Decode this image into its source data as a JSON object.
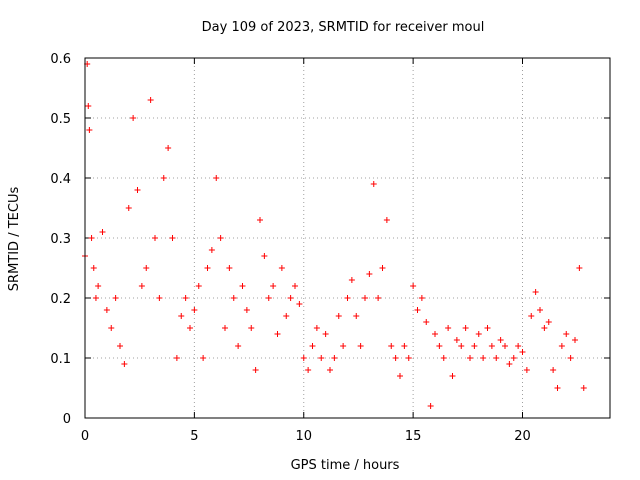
{
  "chart_data": {
    "type": "scatter",
    "title": "Day 109 of 2023, SRMTID for receiver moul",
    "xlabel": "GPS time / hours",
    "ylabel": "SRMTID / TECUs",
    "xlim": [
      0,
      24
    ],
    "ylim": [
      0,
      0.6
    ],
    "xticks": [
      0,
      5,
      10,
      15,
      20
    ],
    "xtick_labels": [
      "0",
      "5",
      "10",
      "15",
      "20"
    ],
    "yticks": [
      0,
      0.1,
      0.2,
      0.3,
      0.4,
      0.5,
      0.6
    ],
    "ytick_labels": [
      "0",
      "0.1",
      "0.2",
      "0.3",
      "0.4",
      "0.5",
      "0.6"
    ],
    "grid": true,
    "marker": "+",
    "series": [
      {
        "name": "SRMTID",
        "color": "#ff0000",
        "x": [
          0.0,
          0.1,
          0.15,
          0.2,
          0.3,
          0.4,
          0.5,
          0.6,
          0.8,
          1.0,
          1.2,
          1.4,
          1.6,
          1.8,
          2.0,
          2.2,
          2.4,
          2.6,
          2.8,
          3.0,
          3.2,
          3.4,
          3.6,
          3.8,
          4.0,
          4.2,
          4.4,
          4.6,
          4.8,
          5.0,
          5.2,
          5.4,
          5.6,
          5.8,
          6.0,
          6.2,
          6.4,
          6.6,
          6.8,
          7.0,
          7.2,
          7.4,
          7.6,
          7.8,
          8.0,
          8.2,
          8.4,
          8.6,
          8.8,
          9.0,
          9.2,
          9.4,
          9.6,
          9.8,
          10.0,
          10.2,
          10.4,
          10.6,
          10.8,
          11.0,
          11.2,
          11.4,
          11.6,
          11.8,
          12.0,
          12.2,
          12.4,
          12.6,
          12.8,
          13.0,
          13.2,
          13.4,
          13.6,
          13.8,
          14.0,
          14.2,
          14.4,
          14.6,
          14.8,
          15.0,
          15.2,
          15.4,
          15.6,
          15.8,
          16.0,
          16.2,
          16.4,
          16.6,
          16.8,
          17.0,
          17.2,
          17.4,
          17.6,
          17.8,
          18.0,
          18.2,
          18.4,
          18.6,
          18.8,
          19.0,
          19.2,
          19.4,
          19.6,
          19.8,
          20.0,
          20.2,
          20.4,
          20.6,
          20.8,
          21.0,
          21.2,
          21.4,
          21.6,
          21.8,
          22.0,
          22.2,
          22.4,
          22.6,
          22.8
        ],
        "y": [
          0.27,
          0.59,
          0.52,
          0.48,
          0.3,
          0.25,
          0.2,
          0.22,
          0.31,
          0.18,
          0.15,
          0.2,
          0.12,
          0.09,
          0.35,
          0.5,
          0.38,
          0.22,
          0.25,
          0.53,
          0.3,
          0.2,
          0.4,
          0.45,
          0.3,
          0.1,
          0.17,
          0.2,
          0.15,
          0.18,
          0.22,
          0.1,
          0.25,
          0.28,
          0.4,
          0.3,
          0.15,
          0.25,
          0.2,
          0.12,
          0.22,
          0.18,
          0.15,
          0.08,
          0.33,
          0.27,
          0.2,
          0.22,
          0.14,
          0.25,
          0.17,
          0.2,
          0.22,
          0.19,
          0.1,
          0.08,
          0.12,
          0.15,
          0.1,
          0.14,
          0.08,
          0.1,
          0.17,
          0.12,
          0.2,
          0.23,
          0.17,
          0.12,
          0.2,
          0.24,
          0.39,
          0.2,
          0.25,
          0.33,
          0.12,
          0.1,
          0.07,
          0.12,
          0.1,
          0.22,
          0.18,
          0.2,
          0.16,
          0.02,
          0.14,
          0.12,
          0.1,
          0.15,
          0.07,
          0.13,
          0.12,
          0.15,
          0.1,
          0.12,
          0.14,
          0.1,
          0.15,
          0.12,
          0.1,
          0.13,
          0.12,
          0.09,
          0.1,
          0.12,
          0.11,
          0.08,
          0.17,
          0.21,
          0.18,
          0.15,
          0.16,
          0.08,
          0.05,
          0.12,
          0.14,
          0.1,
          0.13,
          0.25,
          0.05
        ]
      }
    ]
  }
}
